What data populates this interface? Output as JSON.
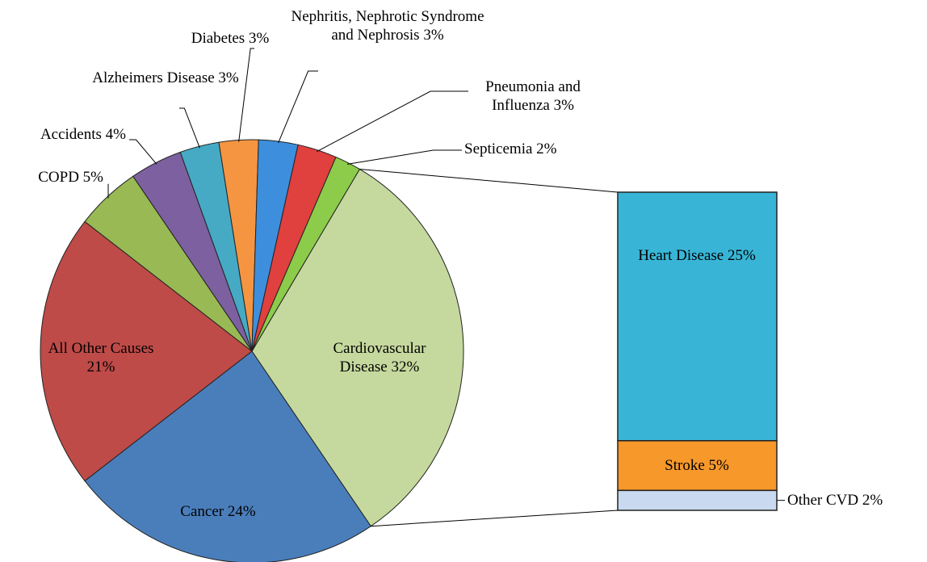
{
  "chart_data": {
    "type": "pie-of-bar",
    "categories": [
      "Cardiovascular Disease",
      "Cancer",
      "All Other Causes",
      "COPD",
      "Accidents",
      "Alzheimers Disease",
      "Diabetes",
      "Nephritis, Nephrotic Syndrome and Nephrosis",
      "Pneumonia and Influenza",
      "Septicemia"
    ],
    "values": [
      32,
      24,
      21,
      5,
      4,
      3,
      3,
      3,
      3,
      2
    ],
    "value_labels": [
      "32%",
      "24%",
      "21%",
      "5%",
      "4%",
      "3%",
      "3%",
      "3%",
      "3%",
      "2%"
    ],
    "colors": [
      "#c5d99e",
      "#4a7ebb",
      "#be4b48",
      "#98b954",
      "#7d60a0",
      "#46aac5",
      "#f59542",
      "#3d8fdd",
      "#e0403e",
      "#8ccc4a"
    ],
    "secondary": {
      "categories": [
        "Heart Disease",
        "Stroke",
        "Other CVD"
      ],
      "values": [
        25,
        5,
        2
      ],
      "value_labels": [
        "25%",
        "5%",
        "2%"
      ],
      "colors": [
        "#38b5d6",
        "#f7982a",
        "#c9d9ef"
      ]
    }
  }
}
